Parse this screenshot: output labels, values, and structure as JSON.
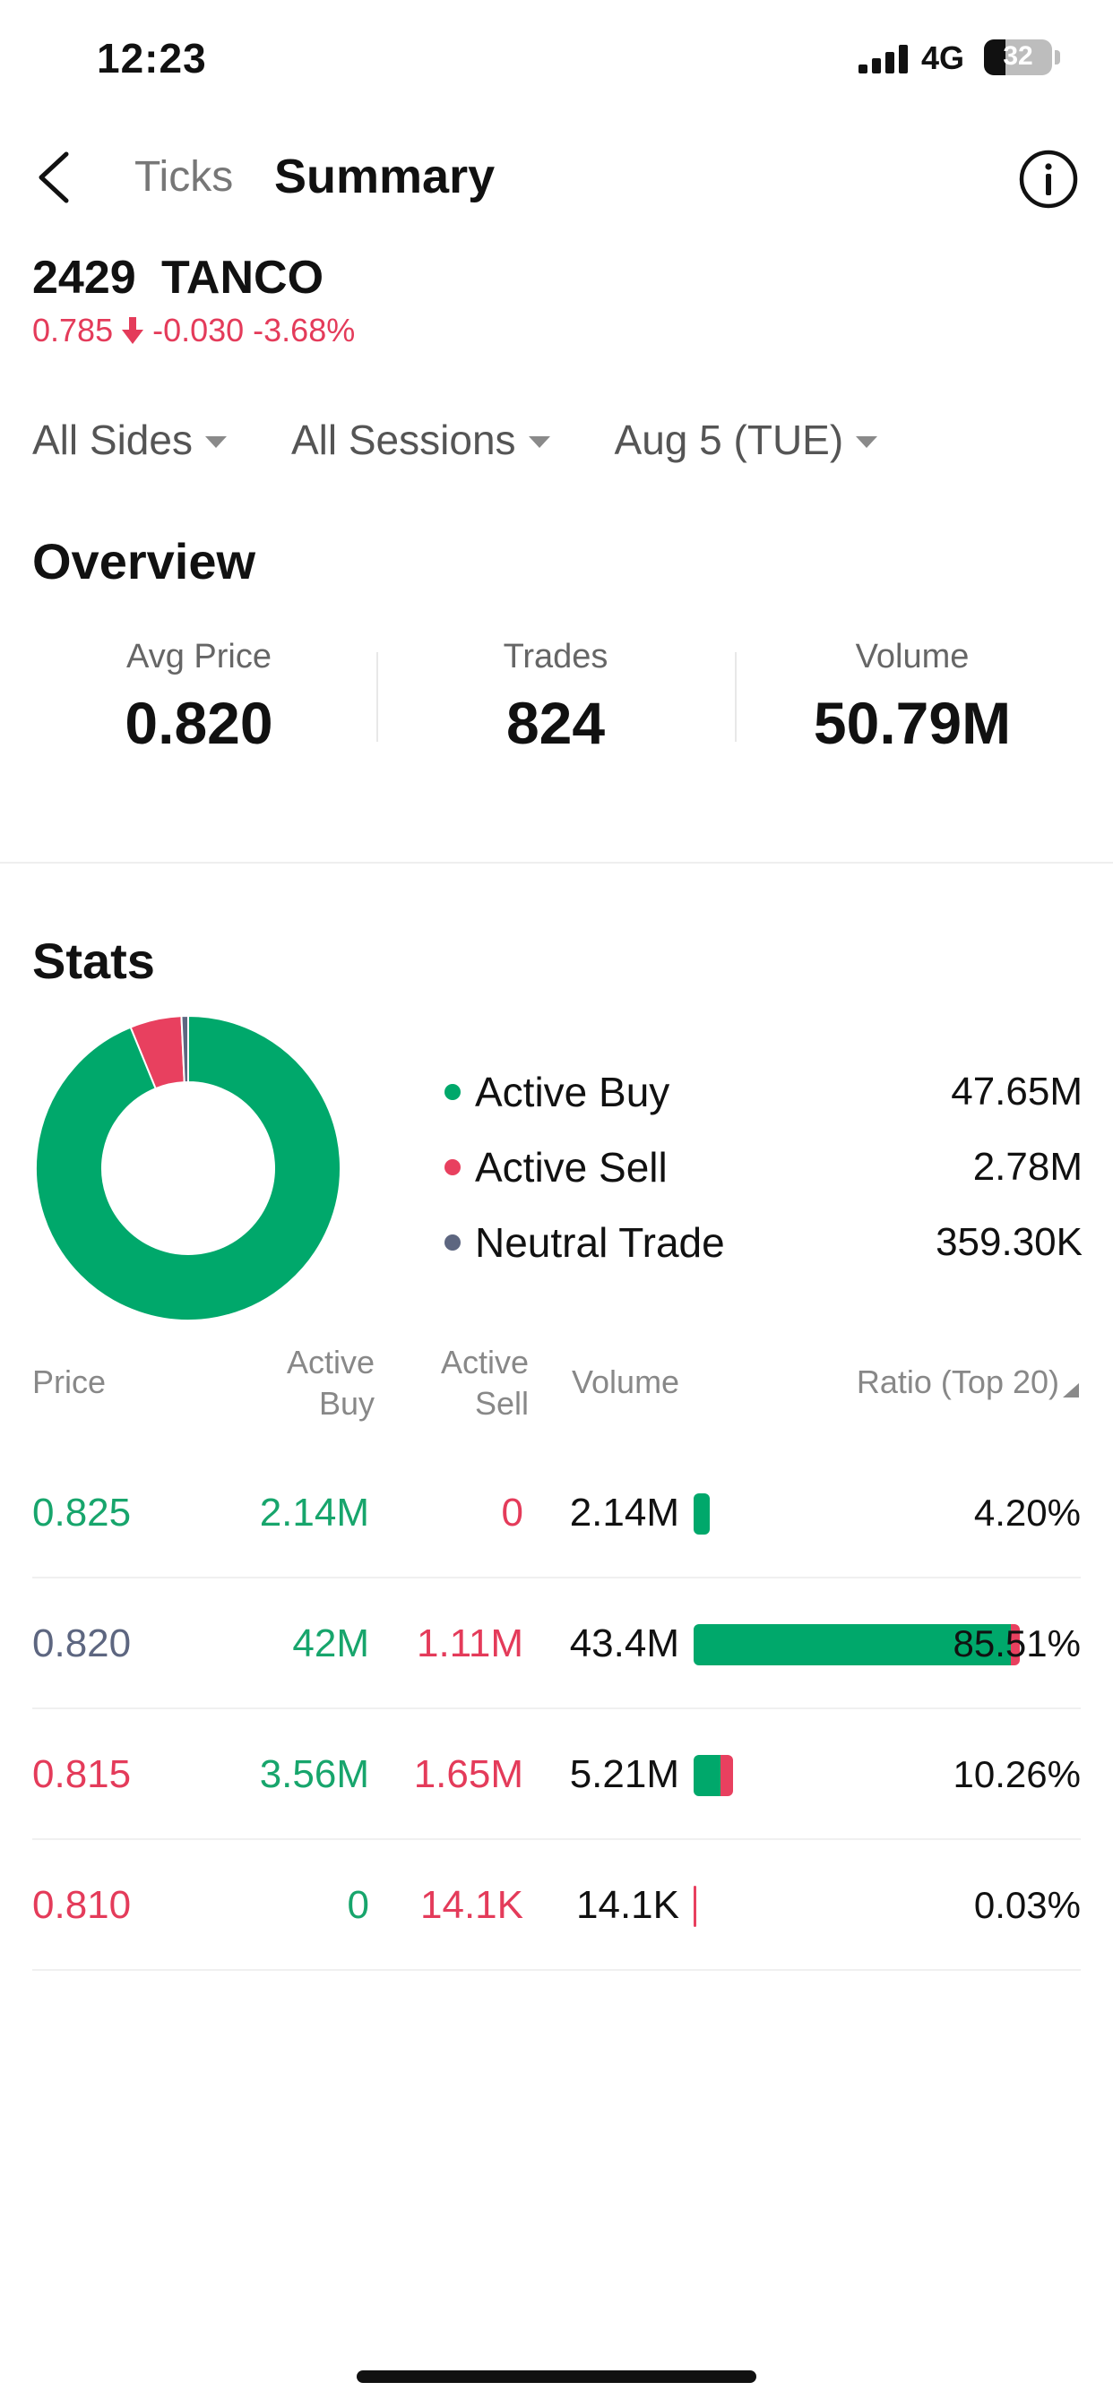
{
  "status_bar": {
    "time": "12:23",
    "network": "4G",
    "battery": "32",
    "battery_level": 0.32
  },
  "nav": {
    "tab_ticks": "Ticks",
    "tab_summary": "Summary"
  },
  "stock": {
    "code": "2429",
    "name": "TANCO",
    "price": "0.785",
    "change": "-0.030",
    "change_pct": "-3.68%"
  },
  "filters": [
    {
      "label": "All Sides"
    },
    {
      "label": "All Sessions"
    },
    {
      "label": "Aug 5 (TUE)"
    }
  ],
  "overview": {
    "title": "Overview",
    "avg_price_label": "Avg Price",
    "avg_price": "0.820",
    "trades_label": "Trades",
    "trades": "824",
    "volume_label": "Volume",
    "volume": "50.79M"
  },
  "stats": {
    "title": "Stats",
    "legend": [
      {
        "label": "Active Buy",
        "value": "47.65M",
        "color": "#00a86b",
        "amount": 47.65
      },
      {
        "label": "Active Sell",
        "value": "2.78M",
        "color": "#e8405f",
        "amount": 2.78
      },
      {
        "label": "Neutral Trade",
        "value": "359.30K",
        "color": "#5d6680",
        "amount": 0.3593
      }
    ]
  },
  "table": {
    "headers": {
      "price": "Price",
      "active_buy_1": "Active",
      "active_buy_2": "Buy",
      "active_sell_1": "Active",
      "active_sell_2": "Sell",
      "volume": "Volume",
      "ratio": "Ratio (Top 20)"
    },
    "rows": [
      {
        "price": "0.825",
        "price_color": "green",
        "buy": "2.14M",
        "sell": "0",
        "volume": "2.14M",
        "ratio": "4.20%",
        "ratio_value": 4.2,
        "buy_share": 1.0,
        "sell_share": 0.0
      },
      {
        "price": "0.820",
        "price_color": "grey",
        "buy": "42M",
        "sell": "1.11M",
        "volume": "43.4M",
        "ratio": "85.51%",
        "ratio_value": 85.51,
        "buy_share": 0.968,
        "sell_share": 0.026
      },
      {
        "price": "0.815",
        "price_color": "red",
        "buy": "3.56M",
        "sell": "1.65M",
        "volume": "5.21M",
        "ratio": "10.26%",
        "ratio_value": 10.26,
        "buy_share": 0.683,
        "sell_share": 0.317
      },
      {
        "price": "0.810",
        "price_color": "red",
        "buy": "0",
        "sell": "14.1K",
        "volume": "14.1K",
        "ratio": "0.03%",
        "ratio_value": 0.03,
        "buy_share": 0.0,
        "sell_share": 1.0
      }
    ]
  }
}
